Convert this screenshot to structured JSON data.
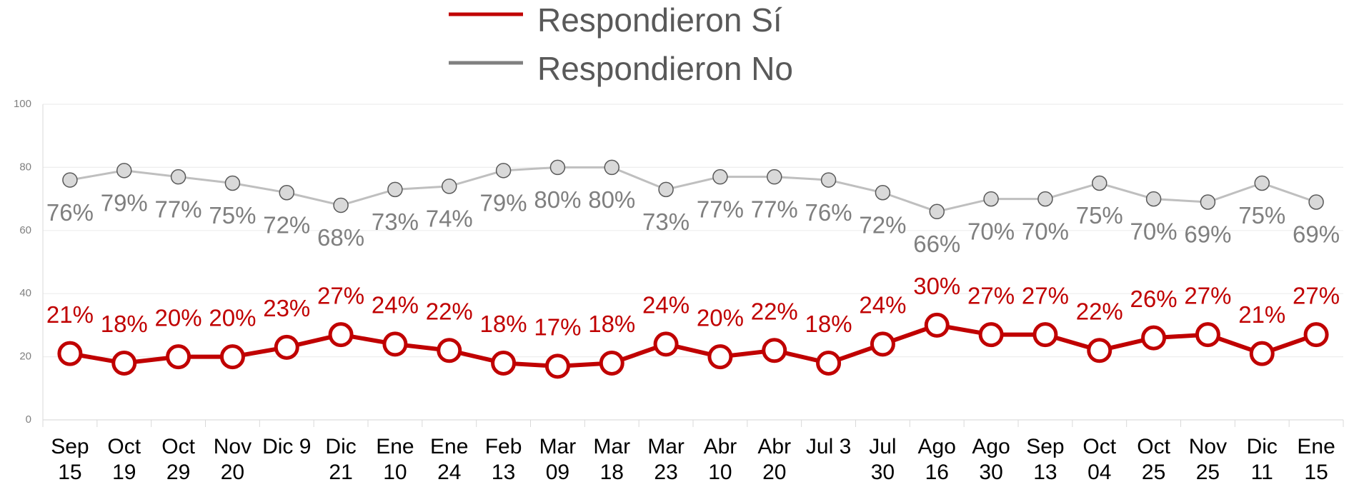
{
  "chart_data": {
    "type": "line",
    "categories": [
      "Sep\n15",
      "Oct\n19",
      "Oct\n29",
      "Nov\n20",
      "Dic 9",
      "Dic\n21",
      "Ene\n10",
      "Ene\n24",
      "Feb\n13",
      "Mar\n09",
      "Mar\n18",
      "Mar\n23",
      "Abr\n10",
      "Abr\n20",
      "Jul 3",
      "Jul\n30",
      "Ago\n16",
      "Ago\n30",
      "Sep\n13",
      "Oct\n04",
      "Oct\n25",
      "Nov\n25",
      "Dic\n11",
      "Ene\n15"
    ],
    "series": [
      {
        "name": "Respondieron Sí",
        "color": "#c00000",
        "values": [
          21,
          18,
          20,
          20,
          23,
          27,
          24,
          22,
          18,
          17,
          18,
          24,
          20,
          22,
          18,
          24,
          30,
          27,
          27,
          22,
          26,
          27,
          21,
          27
        ],
        "value_labels": [
          "21%",
          "18%",
          "20%",
          "20%",
          "23%",
          "27%",
          "24%",
          "22%",
          "18%",
          "17%",
          "18%",
          "24%",
          "20%",
          "22%",
          "18%",
          "24%",
          "30%",
          "27%",
          "27%",
          "22%",
          "26%",
          "27%",
          "21%",
          "27%"
        ]
      },
      {
        "name": "Respondieron No",
        "color": "#808080",
        "values": [
          76,
          79,
          77,
          75,
          72,
          68,
          73,
          74,
          79,
          80,
          80,
          73,
          77,
          77,
          76,
          72,
          66,
          70,
          70,
          75,
          70,
          69,
          75,
          69
        ],
        "value_labels": [
          "76%",
          "79%",
          "77%",
          "75%",
          "72%",
          "68%",
          "73%",
          "74%",
          "79%",
          "80%",
          "80%",
          "73%",
          "77%",
          "77%",
          "76%",
          "72%",
          "66%",
          "70%",
          "70%",
          "75%",
          "70%",
          "69%",
          "75%",
          "69%"
        ]
      }
    ],
    "ylim": [
      0,
      100
    ],
    "yticks": [
      0,
      20,
      40,
      60,
      80,
      100
    ],
    "grid": true,
    "legend": "top"
  }
}
